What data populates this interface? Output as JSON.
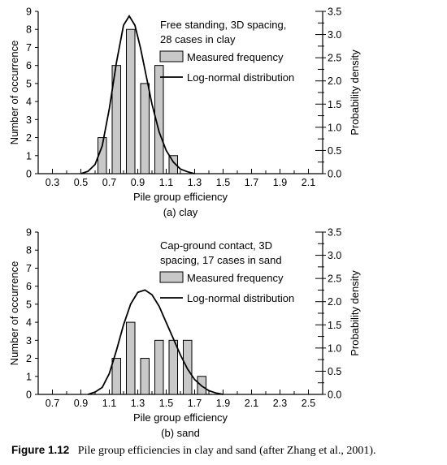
{
  "colors": {
    "bar_fill": "#c8c8c8",
    "stroke": "#000000"
  },
  "caption": {
    "label": "Figure 1.12",
    "text": "Pile group efficiencies in clay and sand (after Zhang et al., 2001)."
  },
  "chart_data": [
    {
      "type": "bar",
      "panel_label": "(a) clay",
      "xlabel": "Pile group efficiency",
      "ylabel": "Number of occurrence",
      "y2label": "Probability density",
      "xlim": [
        0.2,
        2.2
      ],
      "x_ticks": [
        "0.3",
        "0.5",
        "0.7",
        "0.9",
        "1.1",
        "1.3",
        "1.5",
        "1.7",
        "1.9",
        "2.1"
      ],
      "ylim": [
        0,
        9
      ],
      "y_ticks": [
        "0",
        "1",
        "2",
        "3",
        "4",
        "5",
        "6",
        "7",
        "8",
        "9"
      ],
      "y2lim": [
        0,
        3.5
      ],
      "y2_ticks": [
        "0.0",
        "0.5",
        "1.0",
        "1.5",
        "2.0",
        "2.5",
        "3.0",
        "3.5"
      ],
      "annotation": [
        "Free standing, 3D spacing,",
        "28 cases in clay"
      ],
      "legend": {
        "bars": "Measured frequency",
        "line": "Log-normal distribution"
      },
      "bins": [
        {
          "x": 0.65,
          "count": 2
        },
        {
          "x": 0.75,
          "count": 6
        },
        {
          "x": 0.85,
          "count": 8
        },
        {
          "x": 0.95,
          "count": 5
        },
        {
          "x": 1.05,
          "count": 6
        },
        {
          "x": 1.15,
          "count": 1
        }
      ],
      "curve": [
        [
          0.5,
          0.0
        ],
        [
          0.55,
          0.05
        ],
        [
          0.6,
          0.2
        ],
        [
          0.65,
          0.6
        ],
        [
          0.7,
          1.4
        ],
        [
          0.75,
          2.4
        ],
        [
          0.8,
          3.2
        ],
        [
          0.84,
          3.4
        ],
        [
          0.88,
          3.2
        ],
        [
          0.92,
          2.7
        ],
        [
          0.96,
          2.1
        ],
        [
          1.0,
          1.5
        ],
        [
          1.05,
          0.9
        ],
        [
          1.1,
          0.5
        ],
        [
          1.15,
          0.25
        ],
        [
          1.2,
          0.1
        ],
        [
          1.25,
          0.04
        ],
        [
          1.3,
          0.0
        ]
      ]
    },
    {
      "type": "bar",
      "panel_label": "(b) sand",
      "xlabel": "Pile group efficiency",
      "ylabel": "Number of occurrence",
      "y2label": "Probability density",
      "xlim": [
        0.6,
        2.6
      ],
      "x_ticks": [
        "0.7",
        "0.9",
        "1.1",
        "1.3",
        "1.5",
        "1.7",
        "1.9",
        "2.1",
        "2.3",
        "2.5"
      ],
      "ylim": [
        0,
        9
      ],
      "y_ticks": [
        "0",
        "1",
        "2",
        "3",
        "4",
        "5",
        "6",
        "7",
        "8",
        "9"
      ],
      "y2lim": [
        0,
        3.5
      ],
      "y2_ticks": [
        "0.0",
        "0.5",
        "1.0",
        "1.5",
        "2.0",
        "2.5",
        "3.0",
        "3.5"
      ],
      "annotation": [
        "Cap-ground contact, 3D",
        "spacing, 17 cases in sand"
      ],
      "legend": {
        "bars": "Measured frequency",
        "line": "Log-normal distribution"
      },
      "bins": [
        {
          "x": 1.15,
          "count": 2
        },
        {
          "x": 1.25,
          "count": 4
        },
        {
          "x": 1.35,
          "count": 2
        },
        {
          "x": 1.45,
          "count": 3
        },
        {
          "x": 1.55,
          "count": 3
        },
        {
          "x": 1.65,
          "count": 3
        },
        {
          "x": 1.75,
          "count": 1
        }
      ],
      "curve": [
        [
          0.95,
          0.0
        ],
        [
          1.0,
          0.05
        ],
        [
          1.05,
          0.15
        ],
        [
          1.1,
          0.45
        ],
        [
          1.15,
          0.95
        ],
        [
          1.2,
          1.5
        ],
        [
          1.25,
          1.95
        ],
        [
          1.3,
          2.2
        ],
        [
          1.35,
          2.25
        ],
        [
          1.4,
          2.15
        ],
        [
          1.45,
          1.9
        ],
        [
          1.5,
          1.55
        ],
        [
          1.55,
          1.2
        ],
        [
          1.6,
          0.85
        ],
        [
          1.65,
          0.55
        ],
        [
          1.7,
          0.32
        ],
        [
          1.75,
          0.18
        ],
        [
          1.8,
          0.08
        ],
        [
          1.85,
          0.03
        ],
        [
          1.9,
          0.0
        ]
      ]
    }
  ]
}
